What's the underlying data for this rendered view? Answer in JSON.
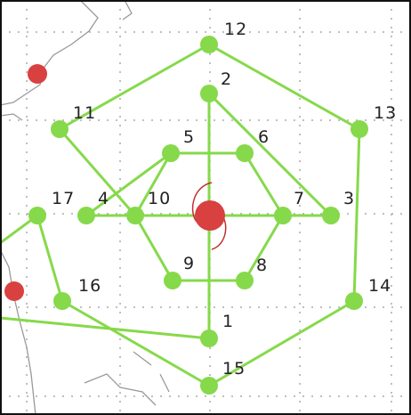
{
  "nodes": [
    {
      "label": "12"
    },
    {
      "label": "2"
    },
    {
      "label": "11"
    },
    {
      "label": "13"
    },
    {
      "label": "5"
    },
    {
      "label": "6"
    },
    {
      "label": "17"
    },
    {
      "label": "4"
    },
    {
      "label": "10"
    },
    {
      "label": "7"
    },
    {
      "label": "3"
    },
    {
      "label": "9"
    },
    {
      "label": "8"
    },
    {
      "label": "16"
    },
    {
      "label": "14"
    },
    {
      "label": "1"
    },
    {
      "label": "15"
    }
  ]
}
